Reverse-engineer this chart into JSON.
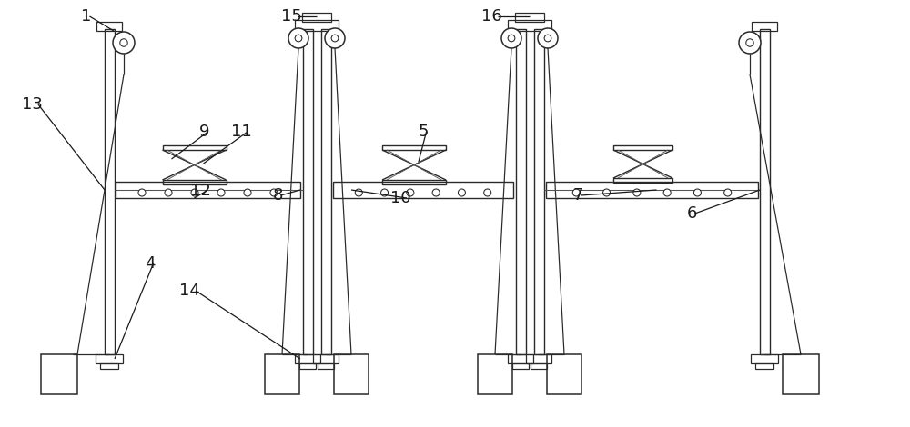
{
  "bg_color": "#ffffff",
  "line_color": "#2a2a2a",
  "lw": 1.1,
  "fig_width": 10.0,
  "fig_height": 4.7
}
